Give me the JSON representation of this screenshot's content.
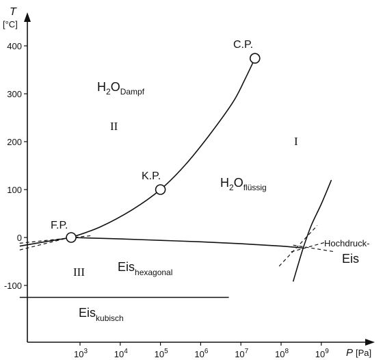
{
  "chart_data": {
    "type": "line",
    "title": "",
    "y_axis": {
      "symbol": "T",
      "unit": "[°C]",
      "ticks": [
        400,
        300,
        200,
        100,
        0,
        -100
      ],
      "ylim": [
        -160,
        420
      ]
    },
    "x_axis": {
      "symbol": "P",
      "unit": "[Pa]",
      "scale": "log",
      "tick_bases": [
        "10",
        "10",
        "10",
        "10",
        "10",
        "10",
        "10"
      ],
      "tick_exponents": [
        "3",
        "4",
        "5",
        "6",
        "7",
        "8",
        "9"
      ],
      "xlim_log10": [
        1.5,
        10.4
      ]
    },
    "points": [
      {
        "label": "F.P.",
        "log10_p": 2.78,
        "t": 0
      },
      {
        "label": "K.P.",
        "log10_p": 5.0,
        "t": 100
      },
      {
        "label": "C.P.",
        "log10_p": 7.35,
        "t": 374
      }
    ],
    "lines": {
      "sublimation": [
        [
          1.5,
          -18
        ],
        [
          2.2,
          -8
        ],
        [
          2.78,
          0
        ]
      ],
      "vaporization": [
        [
          2.78,
          0
        ],
        [
          3.5,
          22
        ],
        [
          4.3,
          58
        ],
        [
          5.0,
          100
        ],
        [
          5.6,
          150
        ],
        [
          6.2,
          212
        ],
        [
          6.8,
          282
        ],
        [
          7.1,
          330
        ],
        [
          7.35,
          374
        ]
      ],
      "melting": [
        [
          2.78,
          0
        ],
        [
          4.0,
          -3
        ],
        [
          5.0,
          -6
        ],
        [
          6.0,
          -9
        ],
        [
          7.0,
          -13
        ],
        [
          8.0,
          -18
        ],
        [
          8.55,
          -22
        ]
      ],
      "high_pressure_ice": [
        [
          8.3,
          -92
        ],
        [
          8.55,
          -22
        ],
        [
          8.75,
          25
        ],
        [
          9.0,
          70
        ],
        [
          9.25,
          120
        ]
      ],
      "cubic_boundary": [
        [
          1.5,
          -125
        ],
        [
          6.7,
          -125
        ]
      ]
    },
    "dashed_extensions": [
      [
        [
          1.5,
          -12
        ],
        [
          3.3,
          4
        ]
      ],
      [
        [
          1.5,
          -26
        ],
        [
          2.6,
          -3
        ]
      ],
      [
        [
          7.95,
          -60
        ],
        [
          8.9,
          25
        ]
      ],
      [
        [
          8.25,
          -30
        ],
        [
          9.1,
          -10
        ]
      ],
      [
        [
          8.3,
          -16
        ],
        [
          9.35,
          -30
        ]
      ]
    ],
    "region_numerals": [
      "I",
      "II",
      "III"
    ],
    "phase_labels": [
      {
        "base": "H",
        "sub1": "2",
        "mid": "O",
        "sub2": "Dampf"
      },
      {
        "base": "H",
        "sub1": "2",
        "mid": "O",
        "sub2": "flüssig"
      },
      {
        "base": "Eis",
        "sub2": "hexagonal"
      },
      {
        "base": "Eis",
        "sub2": "kubisch"
      },
      {
        "line1": "Hochdruck-",
        "line2": "Eis"
      }
    ]
  }
}
